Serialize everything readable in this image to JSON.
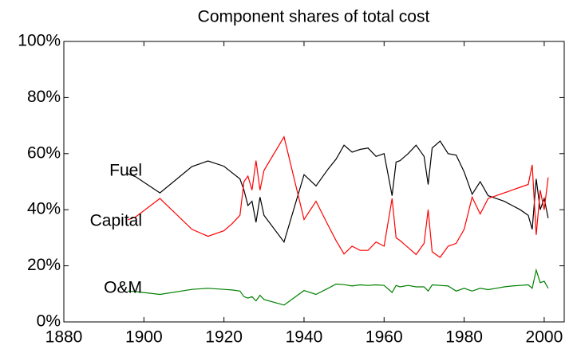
{
  "chart_data": {
    "type": "line",
    "title": "Component shares of total cost",
    "x": [
      1896,
      1898,
      1904,
      1912,
      1916,
      1920,
      1922,
      1924,
      1925,
      1926,
      1927,
      1928,
      1929,
      1930,
      1935,
      1940,
      1943,
      1946,
      1948,
      1950,
      1952,
      1954,
      1956,
      1958,
      1960,
      1962,
      1963,
      1964,
      1966,
      1968,
      1970,
      1971,
      1972,
      1974,
      1976,
      1978,
      1980,
      1982,
      1984,
      1986,
      1988,
      1990,
      1992,
      1994,
      1996,
      1997,
      1998,
      1999,
      2000,
      2001
    ],
    "series": [
      {
        "name": "Fuel",
        "color": "#000000",
        "values": [
          52.8,
          51.7,
          46,
          55.4,
          57.4,
          55.5,
          53.2,
          51,
          47,
          41.5,
          43,
          35.5,
          44.5,
          38,
          28.5,
          52.5,
          48.5,
          54.5,
          58,
          63,
          60.5,
          61.5,
          62,
          59,
          60,
          45,
          57,
          57.5,
          60,
          63,
          59,
          49,
          62,
          64.5,
          60,
          59.5,
          53.5,
          45.5,
          50,
          45,
          44,
          43,
          41.5,
          40,
          38,
          33,
          51,
          40,
          44,
          37
        ]
      },
      {
        "name": "Capital",
        "color": "#ff0000",
        "values": [
          36.4,
          37.5,
          44,
          33,
          30.5,
          32.5,
          35,
          38,
          50,
          52,
          47,
          57.5,
          47,
          54,
          66,
          36.5,
          43,
          34.5,
          29,
          24.2,
          27,
          25.5,
          25.5,
          28.5,
          27,
          44,
          30,
          29,
          26.5,
          24,
          28,
          40,
          25,
          23,
          27,
          28,
          33,
          44.5,
          38.5,
          44,
          45,
          46,
          47,
          48,
          49,
          56,
          31,
          47,
          40,
          51.5
        ]
      },
      {
        "name": "O&M",
        "color": "#008000",
        "values": [
          11,
          10.8,
          9.8,
          11.6,
          12,
          11.6,
          11.4,
          11,
          9,
          8.5,
          9,
          7.5,
          9.5,
          8,
          6,
          11.2,
          9.8,
          12,
          13.5,
          13.3,
          12.8,
          13.2,
          13,
          13.2,
          13,
          10.5,
          13,
          12.5,
          13,
          12.5,
          12.5,
          11,
          13.2,
          13,
          12.8,
          11,
          12,
          11,
          12,
          11.5,
          12,
          12.5,
          12.8,
          13,
          13.2,
          12,
          18.5,
          14,
          14.5,
          12
        ]
      }
    ],
    "xlim": [
      1880,
      2005
    ],
    "xticks": [
      1880,
      1900,
      1920,
      1940,
      1960,
      1980,
      2000
    ],
    "ylim": [
      0,
      100
    ],
    "yticks": [
      {
        "value": 0,
        "label": "0%"
      },
      {
        "value": 20,
        "label": "20%"
      },
      {
        "value": 40,
        "label": "40%"
      },
      {
        "value": 60,
        "label": "60%"
      },
      {
        "value": 80,
        "label": "80%"
      },
      {
        "value": 100,
        "label": "100%"
      }
    ],
    "grid": false
  }
}
